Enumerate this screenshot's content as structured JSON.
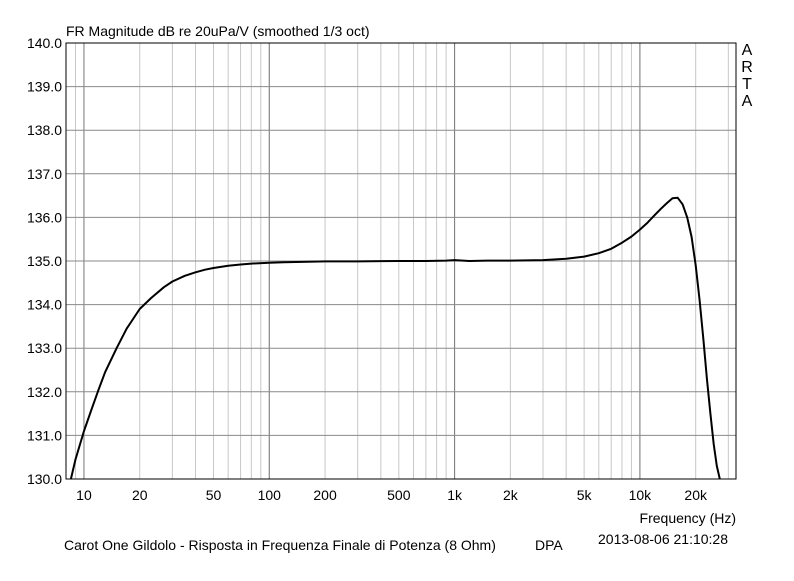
{
  "chart_data": {
    "type": "line",
    "title": "FR Magnitude dB re 20uPa/V (smoothed 1/3 oct)",
    "xlabel": "Frequency (Hz)",
    "ylabel": "",
    "xscale": "log",
    "xlim": [
      8,
      33000
    ],
    "ylim": [
      130.0,
      140.0
    ],
    "grid": true,
    "yticks": [
      "130.0",
      "131.0",
      "132.0",
      "133.0",
      "134.0",
      "135.0",
      "136.0",
      "137.0",
      "138.0",
      "139.0",
      "140.0"
    ],
    "xticks": [
      {
        "value": 10,
        "label": "10"
      },
      {
        "value": 20,
        "label": "20"
      },
      {
        "value": 50,
        "label": "50"
      },
      {
        "value": 100,
        "label": "100"
      },
      {
        "value": 200,
        "label": "200"
      },
      {
        "value": 500,
        "label": "500"
      },
      {
        "value": 1000,
        "label": "1k"
      },
      {
        "value": 2000,
        "label": "2k"
      },
      {
        "value": 5000,
        "label": "5k"
      },
      {
        "value": 10000,
        "label": "10k"
      },
      {
        "value": 20000,
        "label": "20k"
      }
    ],
    "series": [
      {
        "color": "#000000",
        "x": [
          8.5,
          9,
          10,
          11,
          12,
          13,
          15,
          17,
          20,
          23,
          27,
          30,
          35,
          40,
          45,
          50,
          60,
          70,
          80,
          100,
          120,
          150,
          200,
          300,
          500,
          700,
          900,
          1000,
          1200,
          1500,
          2000,
          3000,
          4000,
          5000,
          6000,
          7000,
          8000,
          9000,
          10000,
          11000,
          12000,
          13000,
          14000,
          15000,
          16000,
          17000,
          18000,
          19000,
          20000,
          21000,
          22000,
          23000,
          24000,
          25000,
          26000,
          27000
        ],
        "y": [
          130.0,
          130.45,
          131.1,
          131.6,
          132.05,
          132.45,
          133.0,
          133.45,
          133.9,
          134.15,
          134.4,
          134.53,
          134.66,
          134.74,
          134.8,
          134.84,
          134.89,
          134.92,
          134.94,
          134.96,
          134.97,
          134.98,
          134.99,
          134.99,
          135.0,
          135.0,
          135.01,
          135.02,
          135.0,
          135.01,
          135.01,
          135.02,
          135.05,
          135.1,
          135.18,
          135.28,
          135.42,
          135.56,
          135.72,
          135.88,
          136.05,
          136.2,
          136.33,
          136.44,
          136.45,
          136.3,
          136.0,
          135.55,
          134.9,
          134.1,
          133.2,
          132.3,
          131.5,
          130.8,
          130.3,
          130.0
        ]
      }
    ]
  },
  "side_label": [
    "A",
    "R",
    "T",
    "A"
  ],
  "footer": {
    "description": "Carot One Gildolo - Risposta in Frequenza Finale di Potenza (8 Ohm)",
    "tag": "DPA",
    "timestamp": "2013-08-06  21:10:28"
  }
}
